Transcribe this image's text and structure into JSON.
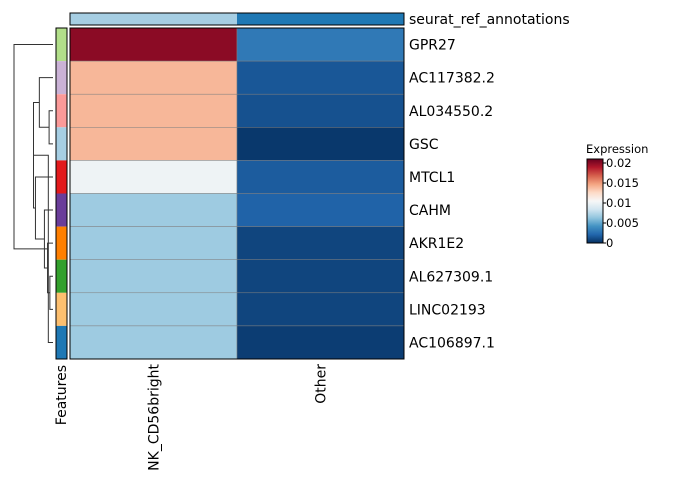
{
  "chart_data": {
    "type": "heatmap",
    "columns": [
      "NK_CD56bright",
      "Other"
    ],
    "rows": [
      "GPR27",
      "AC117382.2",
      "AL034550.2",
      "GSC",
      "MTCL1",
      "CAHM",
      "AKR1E2",
      "AL627309.1",
      "LINC02193",
      "AC106897.1"
    ],
    "values": [
      [
        0.02,
        0.003
      ],
      [
        0.014,
        0.0015
      ],
      [
        0.014,
        0.0013
      ],
      [
        0.014,
        0.0003
      ],
      [
        0.01,
        0.0017
      ],
      [
        0.0067,
        0.002
      ],
      [
        0.0067,
        0.0008
      ],
      [
        0.0067,
        0.0008
      ],
      [
        0.0067,
        0.0008
      ],
      [
        0.0067,
        0.0005
      ]
    ],
    "column_annotation": {
      "label": "seurat_ref_annotations",
      "colors": [
        "#a6cee3",
        "#1f78b4"
      ]
    },
    "row_annotation": {
      "label": "Features",
      "colors": [
        "#b2df8a",
        "#cab2d6",
        "#fb9a99",
        "#a6cee3",
        "#e31a1c",
        "#6a3d9a",
        "#ff7f00",
        "#33a02c",
        "#fdbf6f",
        "#1f78b4"
      ]
    },
    "legend": {
      "title": "Expression",
      "ticks": [
        "0.02",
        "0.015",
        "0.01",
        "0.005",
        "0"
      ],
      "tick_values": [
        0.02,
        0.015,
        0.01,
        0.005,
        0
      ],
      "range": [
        0,
        0.021
      ],
      "placement": "right"
    },
    "colormap": [
      "#053061",
      "#2166ac",
      "#4393c3",
      "#92c5de",
      "#d1e5f0",
      "#f7f7f7",
      "#fddbc7",
      "#f4a582",
      "#d6604d",
      "#b2182b",
      "#67001f"
    ],
    "row_dendrogram": {
      "merges": [
        [
          7,
          8
        ],
        [
          6,
          10
        ],
        [
          5,
          11
        ],
        [
          2,
          3
        ],
        [
          1,
          13
        ],
        [
          4,
          12
        ],
        [
          14,
          15
        ],
        [
          9,
          16
        ],
        [
          0,
          17
        ]
      ],
      "heights": [
        0.08,
        0.14,
        0.22,
        0.1,
        0.35,
        0.45,
        0.5,
        0.12,
        1.0
      ]
    }
  }
}
